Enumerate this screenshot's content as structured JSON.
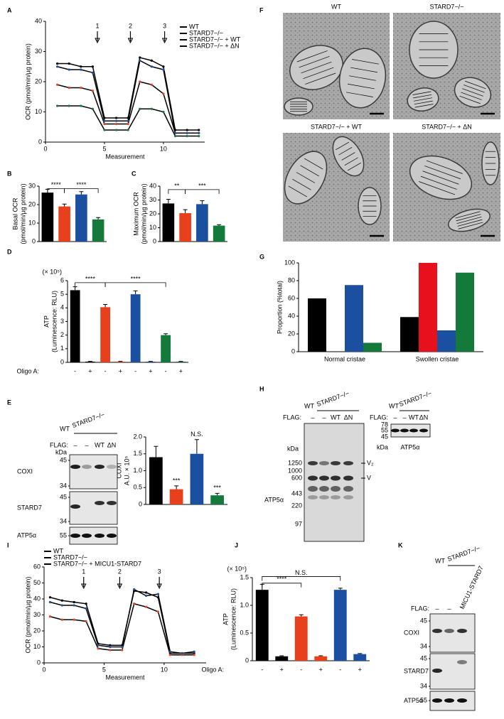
{
  "chart_data": [
    {
      "type": "line",
      "panel": "A",
      "xlabel": "Measurement",
      "ylabel": [
        "OCR (pmol/min/µg protein)"
      ],
      "x": [
        1,
        2,
        3,
        4,
        5,
        6,
        7,
        8,
        9,
        10,
        11,
        12,
        13
      ],
      "xlim": [
        0,
        13.5
      ],
      "xticks": [
        0,
        5,
        10
      ],
      "ylim": [
        0,
        40
      ],
      "yticks": [
        0,
        10,
        20,
        30,
        40
      ],
      "arrows": [
        "1",
        "2",
        "3"
      ],
      "series": [
        {
          "name": "WT",
          "color": "#000000",
          "values": [
            26,
            26,
            25,
            25,
            8,
            8,
            8,
            28,
            27,
            25,
            4,
            4,
            4
          ]
        },
        {
          "name": "STARD7−/−",
          "color": "#e8401c",
          "values": [
            19,
            18,
            18,
            17,
            6,
            6,
            6,
            20,
            19,
            16,
            3,
            3,
            3
          ]
        },
        {
          "name": "STARD7−/− + WT",
          "color": "#1b4fa0",
          "values": [
            25,
            24,
            24,
            23,
            7,
            7,
            7,
            27,
            25,
            24,
            3,
            3,
            3
          ]
        },
        {
          "name": "STARD7−/− + ΔN",
          "color": "#137a3b",
          "values": [
            12,
            12,
            12,
            11,
            4,
            4,
            4,
            11,
            11,
            10,
            2,
            2,
            2
          ]
        }
      ]
    },
    {
      "type": "bar",
      "panel": "B",
      "ylabel": [
        "Basal OCR",
        "(pmol/min/µg protein)"
      ],
      "categories": [
        null,
        null,
        null,
        null
      ],
      "values": [
        26.5,
        19,
        25.5,
        12
      ],
      "errors": [
        1.8,
        1.3,
        1.5,
        1
      ],
      "colors": [
        "#000000",
        "#e8401c",
        "#1b4fa0",
        "#137a3b"
      ],
      "ylim": [
        0,
        30
      ],
      "yticks": [
        0,
        10,
        20,
        30
      ],
      "significance": [
        "****",
        "****"
      ]
    },
    {
      "type": "bar",
      "panel": "C",
      "ylabel": [
        "Maximum OCR",
        "(pmol/min/µg protein)"
      ],
      "categories": [
        null,
        null,
        null,
        null
      ],
      "values": [
        27.5,
        20.5,
        27,
        11.5
      ],
      "errors": [
        3,
        2.5,
        2.5,
        0.7
      ],
      "colors": [
        "#000000",
        "#e8401c",
        "#1b4fa0",
        "#137a3b"
      ],
      "ylim": [
        0,
        40
      ],
      "yticks": [
        0,
        10,
        20,
        30,
        40
      ],
      "significance": [
        "**",
        "***"
      ]
    },
    {
      "type": "bar",
      "panel": "D",
      "ylabel": [
        "ATP",
        "(Luminescence: RLU)"
      ],
      "unit_label": "(× 10⁵)",
      "row_label": "Oligo A:",
      "categories": [
        "-",
        "+",
        "-",
        "+",
        "-",
        "+",
        "-",
        "+"
      ],
      "values": [
        5.3,
        0.05,
        4.05,
        0.05,
        5.0,
        0.05,
        2.0,
        0.05
      ],
      "errors": [
        0.25,
        0.02,
        0.2,
        0.02,
        0.25,
        0.02,
        0.1,
        0.02
      ],
      "colors": [
        "#000000",
        "#000000",
        "#e8401c",
        "#e8401c",
        "#1b4fa0",
        "#1b4fa0",
        "#137a3b",
        "#137a3b"
      ],
      "ylim": [
        0,
        6
      ],
      "yticks": [
        0,
        1,
        2,
        3,
        4,
        5,
        6
      ],
      "significance": [
        "****",
        "****"
      ]
    },
    {
      "type": "bar",
      "ylabel": [
        "COXI",
        "A.U. × 10⁵"
      ],
      "categories": [
        null,
        null,
        null,
        null
      ],
      "values": [
        1.4,
        0.45,
        1.5,
        0.27
      ],
      "errors": [
        0.32,
        0.1,
        0.42,
        0.06
      ],
      "colors": [
        "#000000",
        "#e8401c",
        "#1b4fa0",
        "#137a3b"
      ],
      "ylim": [
        0,
        2
      ],
      "yticks": [
        0,
        0.5,
        {
          "value": 1,
          "label": "1.0"
        },
        1.5,
        {
          "value": 2,
          "label": "2.0"
        }
      ],
      "significance": [
        "***",
        "N.S.",
        "***"
      ]
    },
    {
      "type": "bar",
      "panel": "G",
      "ylabel": [
        "Proportion (%total)"
      ],
      "categories": [
        "Normal cristae",
        "Swollen cristae"
      ],
      "series": [
        {
          "color": "#000000",
          "values": [
            60,
            39
          ]
        },
        {
          "color": "#e8101c",
          "values": [
            0,
            100
          ]
        },
        {
          "color": "#1b4fa0",
          "values": [
            75,
            24
          ]
        },
        {
          "color": "#137a3b",
          "values": [
            10,
            89
          ]
        }
      ],
      "ylim": [
        0,
        100
      ],
      "yticks": [
        0,
        20,
        40,
        60,
        80,
        100
      ]
    },
    {
      "type": "line",
      "panel": "I",
      "xlabel": "Measurement",
      "ylabel": [
        "OCR (pmol/min/µg protein)"
      ],
      "x": [
        0.5,
        1.5,
        2.5,
        3.5,
        4.5,
        5.5,
        6.5,
        7.5,
        8.5,
        9.5,
        10.5,
        11.5,
        12.5
      ],
      "xlim": [
        0,
        13.5
      ],
      "xticks": [
        0,
        5,
        10
      ],
      "ylim": [
        0,
        60
      ],
      "yticks": [
        0,
        10,
        20,
        30,
        40,
        50,
        60
      ],
      "arrows": [
        "1",
        "2",
        "3"
      ],
      "series": [
        {
          "name": "WT",
          "color": "#000000",
          "values": [
            41,
            39,
            38,
            37,
            12,
            11,
            11,
            45,
            44,
            41,
            6,
            6,
            6
          ]
        },
        {
          "name": "STARD7−/−",
          "color": "#e8401c",
          "values": [
            29,
            27,
            27,
            26,
            9,
            8,
            8,
            37,
            35,
            32,
            5,
            5,
            5
          ]
        },
        {
          "name": "STARD7−/− + MICU1-STARD7",
          "color": "#1b4fa0",
          "values": [
            38,
            36,
            36,
            34,
            11,
            10,
            10,
            46,
            42,
            43,
            7,
            6,
            7
          ]
        }
      ]
    },
    {
      "type": "bar",
      "panel": "J",
      "ylabel": [
        "ATP",
        "(Luminescence: RLU)"
      ],
      "unit_label": "(× 10⁵)",
      "row_label": "Oligo A:",
      "categories": [
        "-",
        "+",
        "-",
        "+",
        "-",
        "+"
      ],
      "values": [
        1.28,
        0.08,
        0.8,
        0.08,
        1.28,
        0.12
      ],
      "errors": [
        0.1,
        0.01,
        0.03,
        0.01,
        0.03,
        0.01
      ],
      "colors": [
        "#000000",
        "#000000",
        "#e8401c",
        "#e8401c",
        "#1b4fa0",
        "#1b4fa0"
      ],
      "ylim": [
        0,
        1.5
      ],
      "yticks": [
        0,
        0.5,
        {
          "value": 1,
          "label": "1.0"
        },
        1.5
      ],
      "significance": [
        "****",
        "N.S."
      ]
    }
  ],
  "micrographs": {
    "panel": "F",
    "labels": [
      "WT",
      "STARD7−/−",
      "STARD7−/− + WT",
      "STARD7−/− + ΔN"
    ]
  },
  "blots": {
    "E": {
      "panel": "E",
      "groups": [
        "WT",
        "STARD7−/−"
      ],
      "flag_label": "FLAG:",
      "lanes": [
        "–",
        "–",
        "WT",
        "ΔN"
      ],
      "kda": "kDa",
      "rows": [
        {
          "label": "COXI",
          "markers": [
            "45",
            "34"
          ]
        },
        {
          "label": "STARD7",
          "markers": [
            "45",
            "34"
          ]
        },
        {
          "label": "ATP5α",
          "markers": [
            "55"
          ]
        }
      ]
    },
    "H": {
      "panel": "H",
      "groups": [
        "WT",
        "STARD7−/−"
      ],
      "flag_label": "FLAG:",
      "lanes": [
        "–",
        "–",
        "WT",
        "ΔN"
      ],
      "kda": "kDa",
      "markers": [
        "1250",
        "1000",
        "600",
        "443",
        "220",
        "97"
      ],
      "label": "ATP5α",
      "complexes": [
        "V₂",
        "V"
      ],
      "inset": {
        "groups": [
          "WT",
          "STARD7−/−"
        ],
        "flag_label": "FLAG:",
        "lanes": [
          "–",
          "–",
          "WT",
          "ΔN"
        ],
        "markers": [
          "78",
          "55",
          "45"
        ],
        "kda": "kDa",
        "label": "ATP5α"
      }
    },
    "K": {
      "panel": "K",
      "groups": [
        "WT",
        "STARD7−/−"
      ],
      "flag_label": "FLAG:",
      "lanes": [
        "–",
        "–",
        "MICU1-STARD7"
      ],
      "rows": [
        {
          "label": "COXI",
          "markers": [
            "45",
            "34"
          ]
        },
        {
          "label": "STARD7",
          "markers": [
            "45",
            "34"
          ]
        },
        {
          "label": "ATP5α",
          "markers": [
            "55"
          ]
        }
      ]
    }
  }
}
